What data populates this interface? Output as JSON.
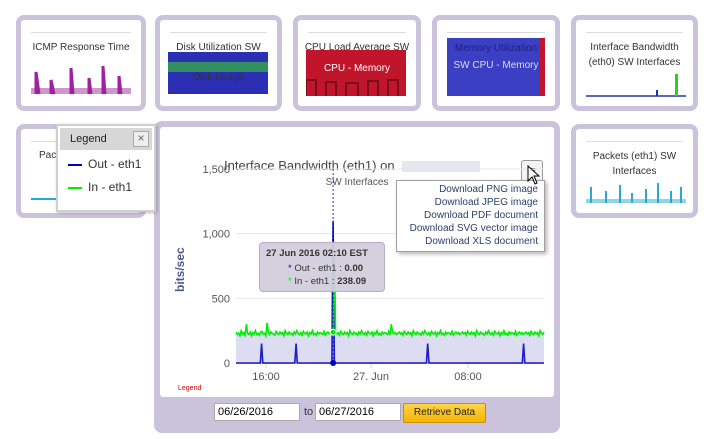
{
  "tiles": [
    {
      "title": "ICMP Response Time"
    },
    {
      "title": "Disk Utilization SW",
      "overlay": "Disk Usage"
    },
    {
      "title": "CPU Load Average SW",
      "overlay": "CPU - Memory"
    },
    {
      "title": "Memory Utilization",
      "overlay": "SW CPU - Memory"
    },
    {
      "title": "Interface Bandwidth (eth0) SW Interfaces"
    },
    {
      "title": "Pac"
    },
    {
      "title": "Packets (eth1) SW Interfaces"
    }
  ],
  "legend_panel": {
    "title": "Legend",
    "close_glyph": "×",
    "items": [
      {
        "label": "Out - eth1",
        "color": "#0000cc"
      },
      {
        "label": "In - eth1",
        "color": "#00ee00"
      }
    ]
  },
  "chart": {
    "title": "Interface Bandwidth (eth1) on",
    "subtitle": "SW Interfaces",
    "ylabel": "bits/sec",
    "yticks": [
      "0",
      "500",
      "1,000",
      "1,500"
    ],
    "xticks": [
      "16:00",
      "27. Jun",
      "08:00"
    ],
    "legend_link": "Legend",
    "menu_glyph": "≡"
  },
  "export_menu": {
    "items": [
      "Download PNG image",
      "Download JPEG image",
      "Download PDF document",
      "Download SVG vector image",
      "Download XLS document"
    ]
  },
  "tooltip": {
    "date": "27 Jun 2016 02:10 EST",
    "out_label": "Out - eth1 :",
    "out_value": "0.00",
    "in_label": "In - eth1 :",
    "in_value": "238.09",
    "marker": "*"
  },
  "date_range": {
    "from": "06/26/2016",
    "to_label": "to",
    "to": "06/27/2016",
    "button": "Retrieve Data"
  },
  "chart_data": {
    "type": "line",
    "xlabel": "",
    "ylabel": "bits/sec",
    "ylim": [
      0,
      1500
    ],
    "x_tick_labels": [
      "16:00",
      "27. Jun",
      "08:00"
    ],
    "series": [
      {
        "name": "Out - eth1",
        "color": "#0000cc",
        "values": [
          0,
          0,
          0,
          0,
          0,
          0,
          0,
          0,
          0,
          0,
          0,
          0,
          0,
          0,
          0,
          0,
          0,
          0,
          0,
          0,
          150,
          0,
          0,
          0,
          0,
          0,
          0,
          0,
          0,
          0,
          0,
          0,
          0,
          0,
          0,
          0,
          0,
          0,
          0,
          0,
          0,
          0,
          0,
          0,
          0,
          0,
          0,
          150,
          0,
          0,
          0,
          0,
          0,
          0,
          0,
          0,
          0,
          0,
          0,
          0,
          0,
          0,
          0,
          0,
          0,
          0,
          0,
          0,
          0,
          0,
          0,
          0,
          0,
          0,
          0,
          0,
          1100,
          0,
          0,
          0,
          0,
          0,
          0,
          0,
          0,
          0,
          0,
          0,
          0,
          0,
          0,
          0,
          0,
          0,
          0,
          0,
          0,
          0,
          0,
          0,
          0,
          0,
          0,
          0,
          0,
          0,
          0,
          0,
          0,
          0,
          0,
          0,
          0,
          0,
          0,
          0,
          0,
          0,
          0,
          0,
          0,
          0,
          0,
          0,
          0,
          0,
          0,
          0,
          0,
          0,
          0,
          0,
          0,
          0,
          0,
          0,
          0,
          0,
          0,
          0,
          0,
          0,
          0,
          0,
          0,
          0,
          0,
          0,
          0,
          0,
          150,
          0,
          0,
          0,
          0,
          0,
          0,
          0,
          0,
          0,
          0,
          0,
          0,
          0,
          0,
          0,
          0,
          0,
          0,
          0,
          0,
          0,
          0,
          0,
          0,
          0,
          0,
          0,
          0,
          0,
          0,
          0,
          0,
          0,
          0,
          0,
          0,
          0,
          0,
          0,
          0,
          0,
          0,
          0,
          0,
          0,
          0,
          0,
          0,
          0,
          0,
          0,
          0,
          0,
          0,
          0,
          0,
          0,
          0,
          0,
          0,
          0,
          0,
          0,
          0,
          0,
          0,
          0,
          0,
          0,
          0,
          0,
          0,
          0,
          0,
          150,
          0,
          0,
          0,
          0,
          0,
          0,
          0,
          0,
          0,
          0,
          0,
          0,
          0,
          0,
          0,
          0
        ]
      },
      {
        "name": "In - eth1",
        "color": "#00ee00",
        "values": [
          240,
          220,
          230,
          210,
          250,
          225,
          235,
          215,
          300,
          230,
          220,
          240,
          210,
          235,
          225,
          250,
          220,
          230,
          215,
          240,
          245,
          225,
          230,
          210,
          310,
          235,
          220,
          240,
          230,
          225,
          215,
          245,
          230,
          220,
          240,
          225,
          235,
          210,
          250,
          230,
          220,
          240,
          225,
          230,
          215,
          240,
          225,
          250,
          230,
          220,
          235,
          215,
          245,
          230,
          225,
          240,
          210,
          235,
          225,
          250,
          220,
          230,
          215,
          240,
          225,
          235,
          230,
          220,
          245,
          215,
          230,
          240,
          225,
          235,
          220,
          230,
          880,
          240,
          225,
          235,
          215,
          245,
          230,
          220,
          240,
          225,
          235,
          210,
          250,
          230,
          220,
          240,
          225,
          230,
          215,
          240,
          225,
          250,
          230,
          220,
          235,
          215,
          245,
          230,
          225,
          240,
          210,
          235,
          225,
          250,
          220,
          230,
          215,
          240,
          225,
          235,
          230,
          220,
          245,
          215,
          300,
          240,
          225,
          235,
          220,
          230,
          240,
          225,
          235,
          215,
          245,
          230,
          220,
          240,
          225,
          235,
          210,
          250,
          230,
          220,
          240,
          225,
          230,
          215,
          240,
          225,
          250,
          230,
          220,
          235,
          215,
          245,
          230,
          225,
          240,
          210,
          235,
          225,
          250,
          220,
          230,
          215,
          240,
          225,
          235,
          230,
          220,
          245,
          215,
          230,
          240,
          225,
          235,
          220,
          230,
          240,
          225,
          235,
          215,
          245,
          230,
          220,
          240,
          225,
          235,
          210,
          250,
          230,
          220,
          240,
          225,
          230,
          215,
          240,
          225,
          250,
          230,
          220,
          235,
          215,
          245,
          230,
          225,
          240,
          210,
          235,
          225,
          250,
          220,
          230,
          215,
          240,
          225,
          235,
          230,
          220,
          245,
          215,
          230,
          240,
          225,
          235,
          220,
          230,
          240,
          225,
          235,
          215,
          245,
          230,
          220,
          240,
          225,
          235,
          210,
          250,
          230,
          220,
          240
        ]
      }
    ]
  }
}
